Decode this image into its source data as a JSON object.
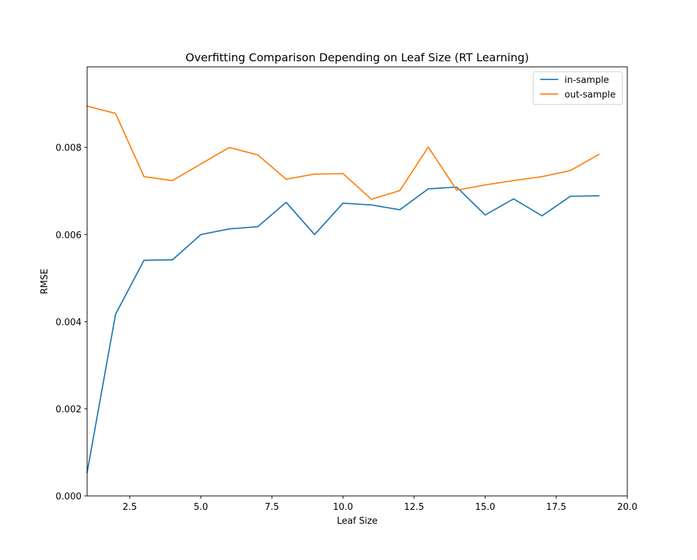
{
  "chart_data": {
    "type": "line",
    "title": "Overfitting Comparison Depending on Leaf Size (RT Learning)",
    "xlabel": "Leaf Size",
    "ylabel": "RMSE",
    "xlim": [
      1,
      20
    ],
    "ylim": [
      0.0,
      0.00985
    ],
    "xticks": [
      2.5,
      5.0,
      7.5,
      10.0,
      12.5,
      15.0,
      17.5,
      20.0
    ],
    "xtick_labels": [
      "2.5",
      "5.0",
      "7.5",
      "10.0",
      "12.5",
      "15.0",
      "17.5",
      "20.0"
    ],
    "yticks": [
      0.0,
      0.002,
      0.004,
      0.006,
      0.008
    ],
    "ytick_labels": [
      "0.000",
      "0.002",
      "0.004",
      "0.006",
      "0.008"
    ],
    "grid": false,
    "legend_position": "top-right",
    "x": [
      1,
      2,
      3,
      4,
      5,
      6,
      7,
      8,
      9,
      10,
      11,
      12,
      13,
      14,
      15,
      16,
      17,
      18,
      19
    ],
    "series": [
      {
        "name": "in-sample",
        "color": "#1f77b4",
        "values": [
          0.00054,
          0.00417,
          0.00541,
          0.00542,
          0.006,
          0.00613,
          0.00618,
          0.00674,
          0.006,
          0.00672,
          0.00668,
          0.00657,
          0.00705,
          0.00709,
          0.00645,
          0.00682,
          0.00643,
          0.00688,
          0.00689
        ]
      },
      {
        "name": "out-sample",
        "color": "#ff7f0e",
        "values": [
          0.00895,
          0.00878,
          0.00733,
          0.00724,
          0.00762,
          0.008,
          0.00783,
          0.00727,
          0.00739,
          0.0074,
          0.00681,
          0.00701,
          0.00801,
          0.00702,
          0.00714,
          0.00724,
          0.00733,
          0.00747,
          0.00784
        ]
      }
    ]
  }
}
